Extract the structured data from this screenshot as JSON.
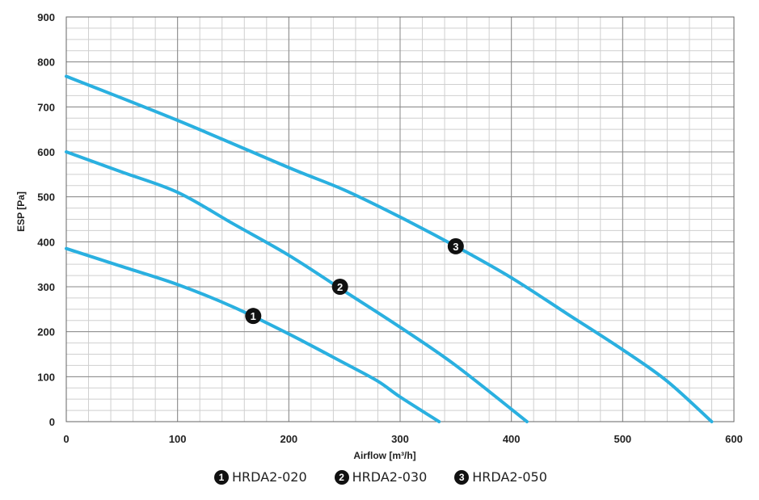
{
  "chart_data": {
    "type": "line",
    "title": "",
    "xlabel": "Airflow [m³/h]",
    "ylabel": "ESP  [Pa]",
    "xlim": [
      0,
      600
    ],
    "ylim": [
      0,
      900
    ],
    "x_ticks": [
      0,
      100,
      200,
      300,
      400,
      500,
      600
    ],
    "y_ticks": [
      0,
      100,
      200,
      300,
      400,
      500,
      600,
      700,
      800,
      900
    ],
    "grid": true,
    "legend_position": "bottom",
    "line_color": "#2ab0e0",
    "series": [
      {
        "name": "HRDA2-020",
        "marker": "1",
        "marker_at": [
          168,
          235
        ],
        "x": [
          0,
          50,
          100,
          150,
          200,
          250,
          280,
          300,
          335
        ],
        "y": [
          385,
          345,
          305,
          255,
          195,
          130,
          90,
          55,
          0
        ]
      },
      {
        "name": "HRDA2-030",
        "marker": "2",
        "marker_at": [
          246,
          300
        ],
        "x": [
          0,
          50,
          100,
          150,
          200,
          250,
          300,
          350,
          414
        ],
        "y": [
          600,
          555,
          510,
          440,
          370,
          290,
          210,
          125,
          0
        ]
      },
      {
        "name": "HRDA2-050",
        "marker": "3",
        "marker_at": [
          350,
          390
        ],
        "x": [
          0,
          100,
          200,
          250,
          300,
          350,
          400,
          450,
          500,
          540,
          580
        ],
        "y": [
          768,
          670,
          565,
          515,
          455,
          390,
          320,
          240,
          160,
          90,
          0
        ]
      }
    ]
  },
  "legend": [
    {
      "badge": "1",
      "label": "HRDA2-020"
    },
    {
      "badge": "2",
      "label": "HRDA2-030"
    },
    {
      "badge": "3",
      "label": "HRDA2-050"
    }
  ]
}
